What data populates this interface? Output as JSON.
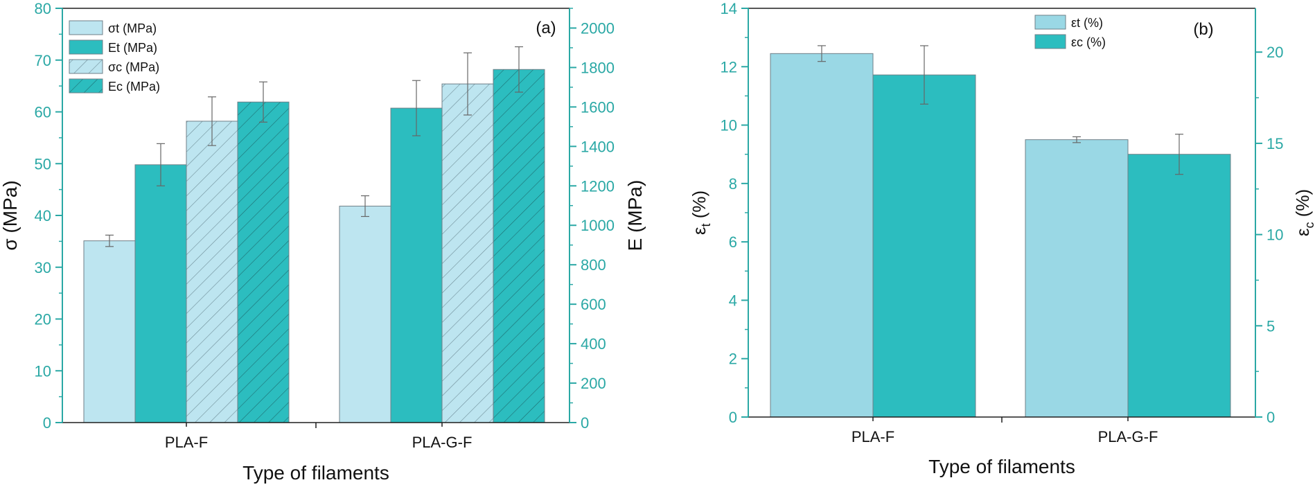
{
  "colors": {
    "light": "#BDE5F0",
    "teal": "#2CBDBF",
    "lightB": "#9AD8E5",
    "axis": "#1E1E1E",
    "axisTeal": "#2AA8A5",
    "err": "#666666",
    "edge": "#6F7F87"
  },
  "chart_data": [
    {
      "panel": "a",
      "panel_label": "(a)",
      "type": "bar",
      "xlabel": "Type of filaments",
      "ylabel_left": "σ (MPa)",
      "ylabel_right": "E (MPa)",
      "ylim_left": [
        0,
        80
      ],
      "ylim_right": [
        0,
        2100
      ],
      "yticks_left": [
        "0",
        "10",
        "20",
        "30",
        "40",
        "50",
        "60",
        "70",
        "80"
      ],
      "yticks_right": [
        "0",
        "200",
        "400",
        "600",
        "800",
        "1000",
        "1200",
        "1400",
        "1600",
        "1800",
        "2000"
      ],
      "categories": [
        "PLA-F",
        "PLA-G-F"
      ],
      "legend_position": "top-left",
      "series": [
        {
          "name": "σt (MPa)",
          "axis": "left",
          "style": "light",
          "values": [
            35.1,
            41.8
          ],
          "errors": [
            1.1,
            2.0
          ]
        },
        {
          "name": "Et (MPa)",
          "axis": "right",
          "style": "teal",
          "values": [
            1307,
            1594
          ],
          "errors": [
            107,
            140
          ]
        },
        {
          "name": "σc (MPa)",
          "axis": "left",
          "style": "light-hatched",
          "values": [
            58.2,
            65.4
          ],
          "errors": [
            4.7,
            6.0
          ]
        },
        {
          "name": "Ec (MPa)",
          "axis": "right",
          "style": "teal-hatched",
          "values": [
            1625,
            1790
          ],
          "errors": [
            102,
            115
          ]
        }
      ]
    },
    {
      "panel": "b",
      "panel_label": "(b)",
      "type": "bar",
      "xlabel": "Type of filaments",
      "ylabel_left": "εt (%)",
      "ylabel_right": "εc (%)",
      "ylim_left": [
        0,
        14
      ],
      "ylim_right": [
        0,
        22.4
      ],
      "yticks_left": [
        "0",
        "2",
        "4",
        "6",
        "8",
        "10",
        "12",
        "14"
      ],
      "yticks_right": [
        "0",
        "5",
        "10",
        "15",
        "20"
      ],
      "categories": [
        "PLA-F",
        "PLA-G-F"
      ],
      "legend_position": "top-center",
      "series": [
        {
          "name": "εt (%)",
          "axis": "left",
          "style": "lightB",
          "values": [
            12.45,
            9.5
          ],
          "errors": [
            0.27,
            0.1
          ]
        },
        {
          "name": "εc (%)",
          "axis": "right",
          "style": "teal",
          "values": [
            18.75,
            14.4
          ],
          "errors": [
            1.6,
            1.1
          ]
        }
      ]
    }
  ]
}
